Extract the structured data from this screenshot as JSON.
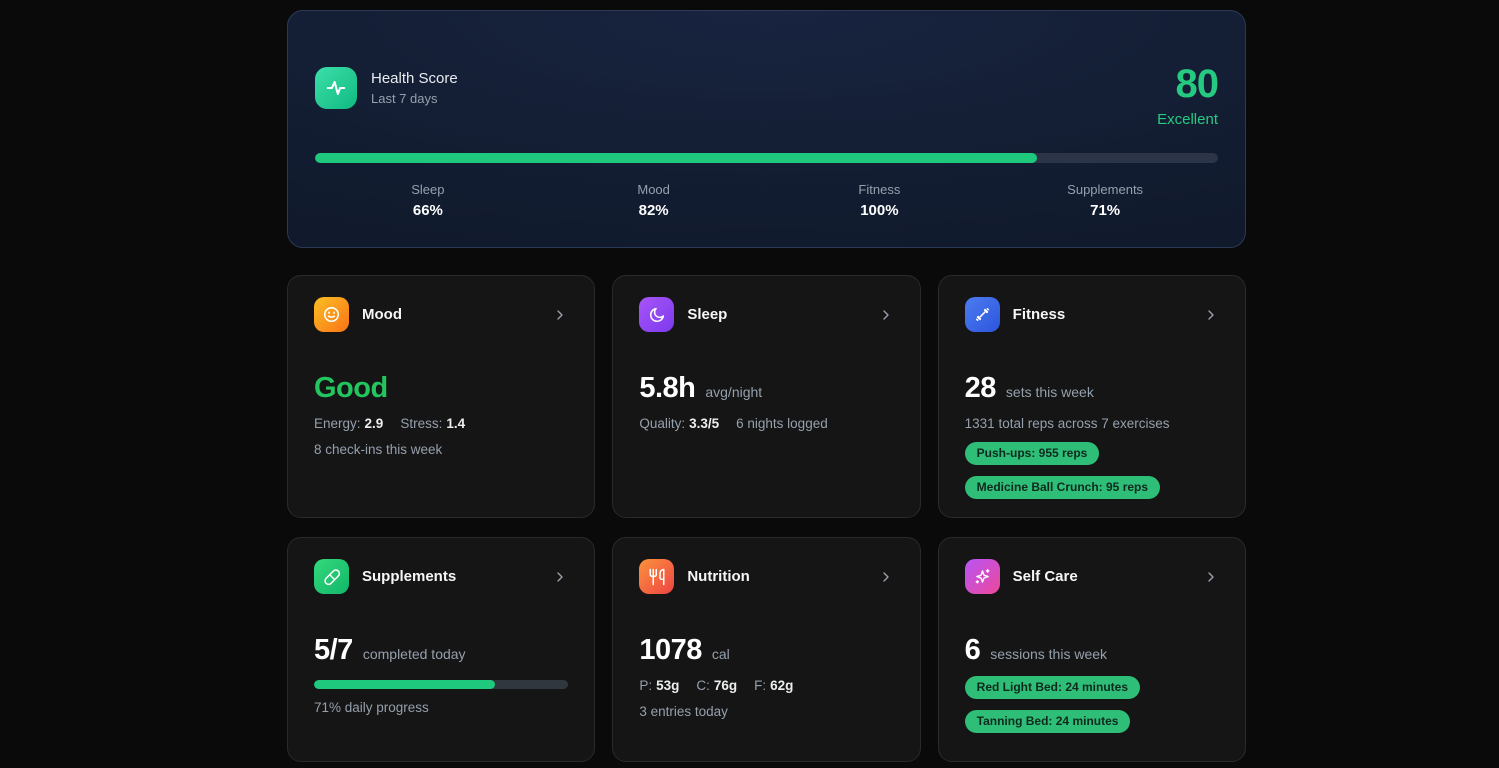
{
  "colors": {
    "accent_green": "#1ec87c",
    "score_green": "#25ca80",
    "badge_green": "#2fbe78",
    "mood_value_green": "#22c55e",
    "hero_bg": "#121c30",
    "card_bg": "#151515",
    "page_bg": "#0a0a0a"
  },
  "icons": {
    "hero": "pulse-icon",
    "mood": "smiley-icon",
    "sleep": "moon-icon",
    "fitness": "dumbbell-icon",
    "supplements": "pill-icon",
    "nutrition": "utensils-icon",
    "self_care": "sparkles-icon",
    "nav": "chevron-right-icon"
  },
  "hero": {
    "title": "Health Score",
    "subtitle": "Last 7 days",
    "score": "80",
    "rating": "Excellent",
    "progress_pct": 80,
    "stats": [
      {
        "label": "Sleep",
        "value": "66%"
      },
      {
        "label": "Mood",
        "value": "82%"
      },
      {
        "label": "Fitness",
        "value": "100%"
      },
      {
        "label": "Supplements",
        "value": "71%"
      }
    ]
  },
  "cards": {
    "mood": {
      "title": "Mood",
      "value": "Good",
      "energy_label": "Energy:",
      "energy_value": "2.9",
      "stress_label": "Stress:",
      "stress_value": "1.4",
      "footnote": "8 check-ins this week"
    },
    "sleep": {
      "title": "Sleep",
      "value": "5.8h",
      "unit": "avg/night",
      "quality_label": "Quality:",
      "quality_value": "3.3/5",
      "secondary": "6 nights logged"
    },
    "fitness": {
      "title": "Fitness",
      "value": "28",
      "unit": "sets this week",
      "detail": "1331 total reps across 7 exercises",
      "badges": [
        "Push-ups: 955 reps",
        "Medicine Ball Crunch: 95 reps"
      ]
    },
    "supplements": {
      "title": "Supplements",
      "value": "5/7",
      "unit": "completed today",
      "progress_pct": 71,
      "footnote": "71% daily progress"
    },
    "nutrition": {
      "title": "Nutrition",
      "value": "1078",
      "unit": "cal",
      "macros": [
        {
          "label": "P:",
          "value": "53g"
        },
        {
          "label": "C:",
          "value": "76g"
        },
        {
          "label": "F:",
          "value": "62g"
        }
      ],
      "footnote": "3 entries today"
    },
    "self_care": {
      "title": "Self Care",
      "value": "6",
      "unit": "sessions this week",
      "badges": [
        "Red Light Bed: 24 minutes",
        "Tanning Bed: 24 minutes"
      ]
    }
  }
}
